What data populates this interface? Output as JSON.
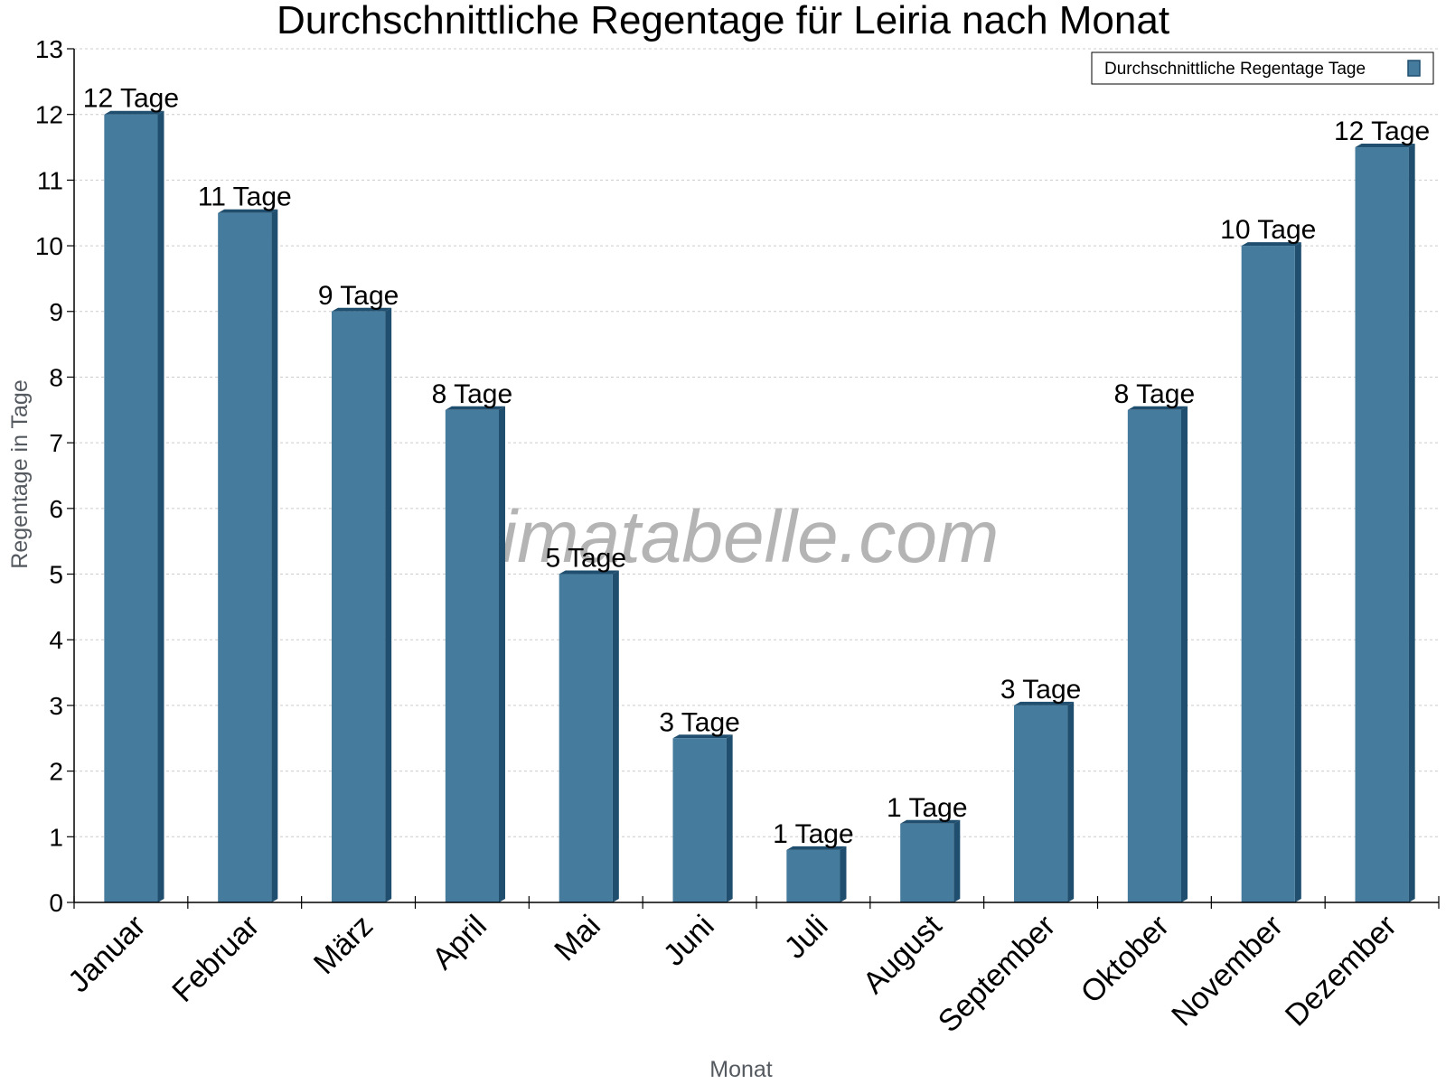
{
  "chart_data": {
    "type": "bar",
    "title": "Durchschnittliche Regentage für Leiria nach Monat",
    "xlabel": "Monat",
    "ylabel": "Regentage in Tage",
    "categories": [
      "Januar",
      "Februar",
      "März",
      "April",
      "Mai",
      "Juni",
      "Juli",
      "August",
      "September",
      "Oktober",
      "November",
      "Dezember"
    ],
    "series": [
      {
        "name": "Durchschnittliche Regentage Tage",
        "values": [
          12,
          10.5,
          9,
          7.5,
          5,
          2.5,
          0.8,
          1.2,
          3,
          7.5,
          10,
          11.5
        ],
        "labels": [
          "12 Tage",
          "11 Tage",
          "9 Tage",
          "8 Tage",
          "5 Tage",
          "3 Tage",
          "1 Tage",
          "1 Tage",
          "3 Tage",
          "8 Tage",
          "10 Tage",
          "12 Tage"
        ]
      }
    ],
    "ylim": [
      0,
      13
    ],
    "yticks": [
      "0",
      "1",
      "2",
      "3",
      "4",
      "5",
      "6",
      "7",
      "8",
      "9",
      "10",
      "11",
      "12",
      "13"
    ],
    "grid": true,
    "legend_position": "top-right",
    "watermark": "klimatabelle.com",
    "colors": {
      "bar": "#457b9d",
      "bar_side": "#1f4e6e",
      "grid": "#cccccc"
    }
  }
}
